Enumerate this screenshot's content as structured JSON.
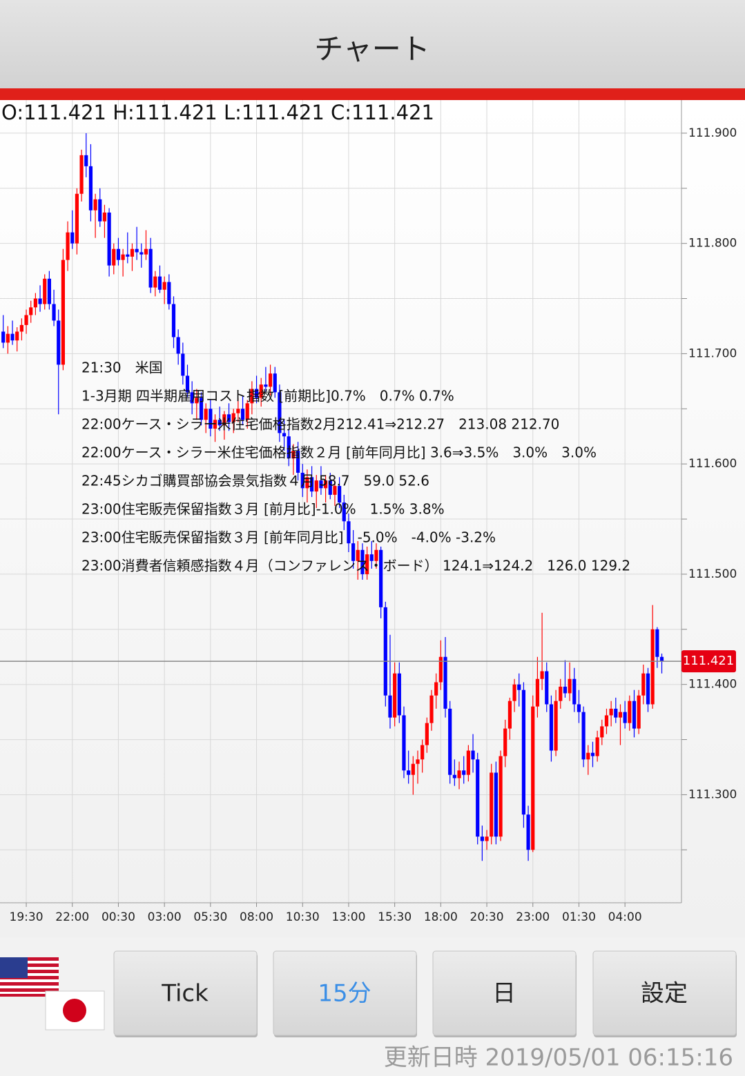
{
  "header": {
    "title": "チャート"
  },
  "chart_data": {
    "type": "candlestick",
    "ohlc": "O:111.421 H:111.421 L:111.421 C:111.421",
    "events": [
      "21:30　米国",
      "1-3月期 四半期雇用コスト指数 [前期比]0.7%　0.7% 0.7%",
      "22:00ケース・シラー米住宅価格指数2月212.41⇒212.27　213.08 212.70",
      "22:00ケース・シラー米住宅価格指数２月 [前年同月比] 3.6⇒3.5%　3.0%　3.0%",
      "22:45シカゴ購買部協会景気指数４月 58.7　59.0 52.6",
      "23:00住宅販売保留指数３月 [前月比]-1.0%　1.5% 3.8%",
      "23:00住宅販売保留指数３月 [前年同月比]　-5.0%　-4.0% -3.2%",
      "23:00消費者信頼感指数４月（コンファレンス・ボード） 124.1⇒124.2　126.0 129.2"
    ],
    "categories": [
      null,
      null,
      null,
      null,
      null,
      "19:30",
      null,
      null,
      null,
      null,
      null,
      null,
      null,
      null,
      null,
      "22:00",
      null,
      null,
      null,
      null,
      null,
      null,
      null,
      null,
      null,
      "00:30",
      null,
      null,
      null,
      null,
      null,
      null,
      null,
      null,
      null,
      "03:00",
      null,
      null,
      null,
      null,
      null,
      null,
      null,
      null,
      null,
      "05:30",
      null,
      null,
      null,
      null,
      null,
      null,
      null,
      null,
      null,
      "08:00",
      null,
      null,
      null,
      null,
      null,
      null,
      null,
      null,
      null,
      "10:30",
      null,
      null,
      null,
      null,
      null,
      null,
      null,
      null,
      null,
      "13:00",
      null,
      null,
      null,
      null,
      null,
      null,
      null,
      null,
      null,
      "15:30",
      null,
      null,
      null,
      null,
      null,
      null,
      null,
      null,
      null,
      "18:00",
      null,
      null,
      null,
      null,
      null,
      null,
      null,
      null,
      null,
      "20:30",
      null,
      null,
      null,
      null,
      null,
      null,
      null,
      null,
      null,
      "23:00",
      null,
      null,
      null,
      null,
      null,
      null,
      null,
      null,
      null,
      "01:30",
      null,
      null,
      null,
      null,
      null,
      null,
      null,
      null,
      null,
      "04:00",
      null,
      null,
      null,
      null,
      null,
      null,
      null,
      null
    ],
    "candles": [
      [
        111.72,
        111.735,
        111.705,
        111.71
      ],
      [
        111.71,
        111.725,
        111.7,
        111.718
      ],
      [
        111.718,
        111.73,
        111.708,
        111.712
      ],
      [
        111.712,
        111.724,
        111.702,
        111.72
      ],
      [
        111.72,
        111.732,
        111.712,
        111.726
      ],
      [
        111.726,
        111.74,
        111.718,
        111.735
      ],
      [
        111.735,
        111.748,
        111.728,
        111.742
      ],
      [
        111.742,
        111.755,
        111.735,
        111.75
      ],
      [
        111.75,
        111.762,
        111.738,
        111.745
      ],
      [
        111.745,
        111.772,
        111.74,
        111.768
      ],
      [
        111.768,
        111.775,
        111.74,
        111.745
      ],
      [
        111.745,
        111.758,
        111.725,
        111.73
      ],
      [
        111.73,
        111.74,
        111.645,
        111.69
      ],
      [
        111.69,
        111.795,
        111.685,
        111.785
      ],
      [
        111.785,
        111.82,
        111.775,
        111.81
      ],
      [
        111.81,
        111.83,
        111.795,
        111.8
      ],
      [
        111.8,
        111.85,
        111.79,
        111.845
      ],
      [
        111.845,
        111.885,
        111.838,
        111.88
      ],
      [
        111.88,
        111.9,
        111.86,
        111.87
      ],
      [
        111.87,
        111.89,
        111.82,
        111.83
      ],
      [
        111.83,
        111.845,
        111.805,
        111.84
      ],
      [
        111.84,
        111.85,
        111.815,
        111.82
      ],
      [
        111.82,
        111.835,
        111.805,
        111.828
      ],
      [
        111.828,
        111.832,
        111.77,
        111.78
      ],
      [
        111.78,
        111.8,
        111.772,
        111.795
      ],
      [
        111.795,
        111.805,
        111.78,
        111.785
      ],
      [
        111.785,
        111.795,
        111.77,
        111.79
      ],
      [
        111.79,
        111.81,
        111.782,
        111.788
      ],
      [
        111.788,
        111.8,
        111.775,
        111.795
      ],
      [
        111.795,
        111.815,
        111.785,
        111.792
      ],
      [
        111.792,
        111.8,
        111.778,
        111.79
      ],
      [
        111.79,
        111.812,
        111.785,
        111.795
      ],
      [
        111.795,
        111.805,
        111.755,
        111.76
      ],
      [
        111.76,
        111.775,
        111.752,
        111.77
      ],
      [
        111.77,
        111.78,
        111.755,
        111.758
      ],
      [
        111.758,
        111.77,
        111.745,
        111.765
      ],
      [
        111.765,
        111.772,
        111.74,
        111.745
      ],
      [
        111.745,
        111.752,
        111.705,
        111.715
      ],
      [
        111.715,
        111.722,
        111.69,
        111.7
      ],
      [
        111.7,
        111.71,
        111.672,
        111.68
      ],
      [
        111.68,
        111.69,
        111.66,
        111.665
      ],
      [
        111.665,
        111.675,
        111.645,
        111.655
      ],
      [
        111.655,
        111.668,
        111.64,
        111.66
      ],
      [
        111.66,
        111.665,
        111.635,
        111.64
      ],
      [
        111.64,
        111.655,
        111.628,
        111.65
      ],
      [
        111.65,
        111.658,
        111.625,
        111.632
      ],
      [
        111.632,
        111.645,
        111.62,
        111.64
      ],
      [
        111.64,
        111.652,
        111.63,
        111.635
      ],
      [
        111.635,
        111.648,
        111.622,
        111.645
      ],
      [
        111.645,
        111.655,
        111.63,
        111.638
      ],
      [
        111.638,
        111.65,
        111.628,
        111.646
      ],
      [
        111.646,
        111.66,
        111.638,
        111.65
      ],
      [
        111.65,
        111.662,
        111.635,
        111.64
      ],
      [
        111.64,
        111.658,
        111.632,
        111.655
      ],
      [
        111.655,
        111.675,
        111.645,
        111.668
      ],
      [
        111.668,
        111.68,
        111.655,
        111.66
      ],
      [
        111.66,
        111.678,
        111.652,
        111.672
      ],
      [
        111.672,
        111.688,
        111.665,
        111.67
      ],
      [
        111.67,
        111.69,
        111.662,
        111.682
      ],
      [
        111.682,
        111.688,
        111.66,
        111.665
      ],
      [
        111.665,
        111.672,
        111.62,
        111.628
      ],
      [
        111.628,
        111.64,
        111.612,
        111.625
      ],
      [
        111.625,
        111.632,
        111.598,
        111.605
      ],
      [
        111.605,
        111.618,
        111.59,
        111.612
      ],
      [
        111.612,
        111.62,
        111.585,
        111.592
      ],
      [
        111.592,
        111.6,
        111.57,
        111.578
      ],
      [
        111.578,
        111.595,
        111.565,
        111.588
      ],
      [
        111.588,
        111.598,
        111.57,
        111.575
      ],
      [
        111.575,
        111.59,
        111.56,
        111.585
      ],
      [
        111.585,
        111.598,
        111.572,
        111.578
      ],
      [
        111.578,
        111.59,
        111.565,
        111.585
      ],
      [
        111.585,
        111.592,
        111.568,
        111.572
      ],
      [
        111.572,
        111.585,
        111.562,
        111.58
      ],
      [
        111.58,
        111.588,
        111.56,
        111.565
      ],
      [
        111.565,
        111.572,
        111.54,
        111.548
      ],
      [
        111.548,
        111.555,
        111.52,
        111.528
      ],
      [
        111.528,
        111.54,
        111.505,
        111.512
      ],
      [
        111.512,
        111.53,
        111.495,
        111.522
      ],
      [
        111.522,
        111.528,
        111.495,
        111.5
      ],
      [
        111.5,
        111.525,
        111.495,
        111.518
      ],
      [
        111.518,
        111.53,
        111.505,
        111.512
      ],
      [
        111.512,
        111.528,
        111.505,
        111.522
      ],
      [
        111.522,
        111.525,
        111.46,
        111.47
      ],
      [
        111.47,
        111.475,
        111.38,
        111.39
      ],
      [
        111.39,
        111.445,
        111.36,
        111.37
      ],
      [
        111.37,
        111.42,
        111.362,
        111.41
      ],
      [
        111.41,
        111.42,
        111.365,
        111.372
      ],
      [
        111.372,
        111.38,
        111.315,
        111.322
      ],
      [
        111.322,
        111.34,
        111.31,
        111.318
      ],
      [
        111.318,
        111.335,
        111.3,
        111.328
      ],
      [
        111.328,
        111.34,
        111.31,
        111.332
      ],
      [
        111.332,
        111.35,
        111.32,
        111.345
      ],
      [
        111.345,
        111.37,
        111.338,
        111.365
      ],
      [
        111.365,
        111.395,
        111.358,
        111.39
      ],
      [
        111.39,
        111.41,
        111.378,
        111.402
      ],
      [
        111.402,
        111.44,
        111.395,
        111.425
      ],
      [
        111.425,
        111.443,
        111.37,
        111.378
      ],
      [
        111.378,
        111.385,
        111.31,
        111.318
      ],
      [
        111.318,
        111.332,
        111.308,
        111.315
      ],
      [
        111.315,
        111.33,
        111.305,
        111.322
      ],
      [
        111.322,
        111.335,
        111.31,
        111.318
      ],
      [
        111.318,
        111.345,
        111.312,
        111.34
      ],
      [
        111.34,
        111.355,
        111.32,
        111.332
      ],
      [
        111.332,
        111.338,
        111.255,
        111.262
      ],
      [
        111.262,
        111.272,
        111.24,
        111.258
      ],
      [
        111.258,
        111.268,
        111.25,
        111.262
      ],
      [
        111.262,
        111.328,
        111.255,
        111.32
      ],
      [
        111.32,
        111.33,
        111.255,
        111.262
      ],
      [
        111.262,
        111.34,
        111.258,
        111.335
      ],
      [
        111.335,
        111.368,
        111.325,
        111.36
      ],
      [
        111.36,
        111.388,
        111.35,
        111.385
      ],
      [
        111.385,
        111.405,
        111.375,
        111.4
      ],
      [
        111.4,
        111.41,
        111.38,
        111.395
      ],
      [
        111.395,
        111.402,
        111.27,
        111.282
      ],
      [
        111.282,
        111.29,
        111.24,
        111.25
      ],
      [
        111.25,
        111.39,
        111.248,
        111.38
      ],
      [
        111.38,
        111.425,
        111.37,
        111.405
      ],
      [
        111.405,
        111.465,
        111.395,
        111.412
      ],
      [
        111.412,
        111.42,
        111.375,
        111.382
      ],
      [
        111.382,
        111.39,
        111.33,
        111.34
      ],
      [
        111.34,
        111.395,
        111.335,
        111.385
      ],
      [
        111.385,
        111.405,
        111.378,
        111.398
      ],
      [
        111.398,
        111.422,
        111.388,
        111.392
      ],
      [
        111.392,
        111.42,
        111.385,
        111.405
      ],
      [
        111.405,
        111.415,
        111.375,
        111.382
      ],
      [
        111.382,
        111.395,
        111.365,
        111.375
      ],
      [
        111.375,
        111.38,
        111.325,
        111.332
      ],
      [
        111.332,
        111.345,
        111.318,
        111.338
      ],
      [
        111.338,
        111.348,
        111.325,
        111.335
      ],
      [
        111.335,
        111.358,
        111.33,
        111.352
      ],
      [
        111.352,
        111.368,
        111.345,
        111.362
      ],
      [
        111.362,
        111.378,
        111.355,
        111.372
      ],
      [
        111.372,
        111.385,
        111.362,
        111.378
      ],
      [
        111.378,
        111.388,
        111.365,
        111.37
      ],
      [
        111.37,
        111.382,
        111.345,
        111.375
      ],
      [
        111.375,
        111.385,
        111.36,
        111.365
      ],
      [
        111.365,
        111.39,
        111.358,
        111.385
      ],
      [
        111.385,
        111.395,
        111.352,
        111.36
      ],
      [
        111.36,
        111.395,
        111.355,
        111.39
      ],
      [
        111.39,
        111.418,
        111.382,
        111.41
      ],
      [
        111.41,
        111.415,
        111.375,
        111.382
      ],
      [
        111.382,
        111.472,
        111.378,
        111.45
      ],
      [
        111.45,
        111.452,
        111.415,
        111.425
      ],
      [
        111.425,
        111.428,
        111.41,
        111.421
      ]
    ],
    "up_color": "#ff0000",
    "down_color": "#0000ff",
    "last_price": 111.421,
    "last_price_color": "#e60012",
    "ylim": [
      111.202,
      111.93
    ],
    "yticks": [
      {
        "value": 111.3,
        "label": "111.300"
      },
      {
        "value": 111.4,
        "label": "111.400"
      },
      {
        "value": 111.5,
        "label": "111.500"
      },
      {
        "value": 111.6,
        "label": "111.600"
      },
      {
        "value": 111.7,
        "label": "111.700"
      },
      {
        "value": 111.8,
        "label": "111.800"
      },
      {
        "value": 111.9,
        "label": "111.900"
      }
    ],
    "minor_yticks": [
      111.25,
      111.35,
      111.45,
      111.55,
      111.65,
      111.75,
      111.85
    ],
    "grid": true
  },
  "buttons": [
    "Tick",
    "15分",
    "日",
    "設定"
  ],
  "updated": "更新日時 2019/05/01 06:15:16"
}
